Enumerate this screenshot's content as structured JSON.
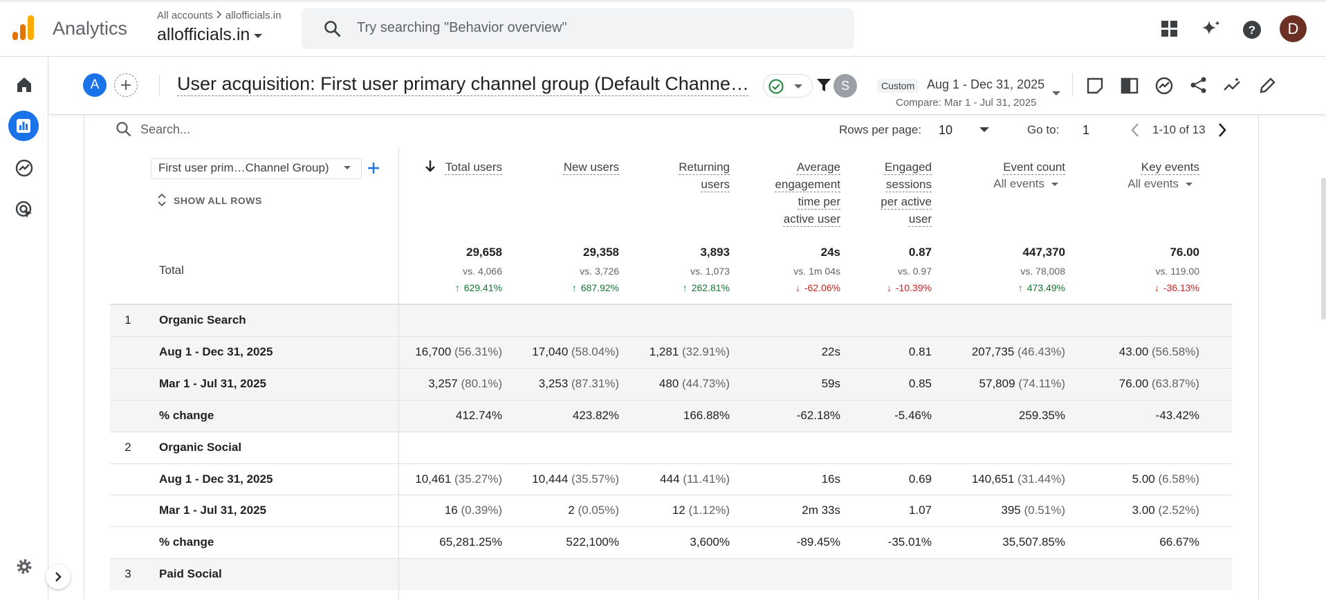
{
  "header": {
    "product": "Analytics",
    "breadcrumb": "All accounts",
    "account_breadcrumb": "allofficials.in",
    "property": "allofficials.in",
    "search_placeholder": "Try searching \"Behavior overview\"",
    "avatar": "D"
  },
  "report": {
    "badge": "A",
    "title": "User acquisition: First user primary channel group (Default Channe…",
    "segment_badge": "S",
    "date_label": "Custom",
    "date_range": "Aug 1 - Dec 31, 2025",
    "compare": "Compare: Mar 1 - Jul 31, 2025"
  },
  "table": {
    "search_placeholder": "Search...",
    "rows_per_page_label": "Rows per page:",
    "rows_per_page": "10",
    "goto_label": "Go to:",
    "goto": "1",
    "pagination": "1-10 of 13",
    "dimension": "First user prim…Channel Group)",
    "show_all": "SHOW ALL ROWS",
    "columns": [
      {
        "label": "Total users"
      },
      {
        "label": "New users"
      },
      {
        "label": "Returning users"
      },
      {
        "label": "Average engagement time per active user"
      },
      {
        "label": "Engaged sessions per active user"
      },
      {
        "label": "Event count",
        "sub": "All events"
      },
      {
        "label": "Key events",
        "sub": "All events"
      }
    ],
    "total": {
      "label": "Total",
      "values": [
        "29,658",
        "29,358",
        "3,893",
        "24s",
        "0.87",
        "447,370",
        "76.00"
      ],
      "compare": [
        "vs. 4,066",
        "vs. 3,726",
        "vs. 1,073",
        "vs. 1m 04s",
        "vs. 0.97",
        "vs. 78,008",
        "vs. 119.00"
      ],
      "change": [
        "629.41%",
        "687.92%",
        "262.81%",
        "-62.06%",
        "-10.39%",
        "473.49%",
        "-36.13%"
      ]
    },
    "groups": [
      {
        "index": "1",
        "name": "Organic Search",
        "rows": [
          {
            "label": "Aug 1 - Dec 31, 2025",
            "cells": [
              [
                "16,700",
                "(56.31%)"
              ],
              [
                "17,040",
                "(58.04%)"
              ],
              [
                "1,281",
                "(32.91%)"
              ],
              [
                "22s"
              ],
              [
                "0.81"
              ],
              [
                "207,735",
                "(46.43%)"
              ],
              [
                "43.00",
                "(56.58%)"
              ]
            ]
          },
          {
            "label": "Mar 1 - Jul 31, 2025",
            "cells": [
              [
                "3,257",
                "(80.1%)"
              ],
              [
                "3,253",
                "(87.31%)"
              ],
              [
                "480",
                "(44.73%)"
              ],
              [
                "59s"
              ],
              [
                "0.85"
              ],
              [
                "57,809",
                "(74.11%)"
              ],
              [
                "76.00",
                "(63.87%)"
              ]
            ]
          },
          {
            "label": "% change",
            "cells": [
              [
                "412.74%"
              ],
              [
                "423.82%"
              ],
              [
                "166.88%"
              ],
              [
                "-62.18%"
              ],
              [
                "-5.46%"
              ],
              [
                "259.35%"
              ],
              [
                "-43.42%"
              ]
            ]
          }
        ]
      },
      {
        "index": "2",
        "name": "Organic Social",
        "rows": [
          {
            "label": "Aug 1 - Dec 31, 2025",
            "cells": [
              [
                "10,461",
                "(35.27%)"
              ],
              [
                "10,444",
                "(35.57%)"
              ],
              [
                "444",
                "(11.41%)"
              ],
              [
                "16s"
              ],
              [
                "0.69"
              ],
              [
                "140,651",
                "(31.44%)"
              ],
              [
                "5.00",
                "(6.58%)"
              ]
            ]
          },
          {
            "label": "Mar 1 - Jul 31, 2025",
            "cells": [
              [
                "16",
                "(0.39%)"
              ],
              [
                "2",
                "(0.05%)"
              ],
              [
                "12",
                "(1.12%)"
              ],
              [
                "2m 33s"
              ],
              [
                "1.07"
              ],
              [
                "395",
                "(0.51%)"
              ],
              [
                "3.00",
                "(2.52%)"
              ]
            ]
          },
          {
            "label": "% change",
            "cells": [
              [
                "65,281.25%"
              ],
              [
                "522,100%"
              ],
              [
                "3,600%"
              ],
              [
                "-89.45%"
              ],
              [
                "-35.01%"
              ],
              [
                "35,507.85%"
              ],
              [
                "66.67%"
              ]
            ]
          }
        ]
      },
      {
        "index": "3",
        "name": "Paid Social",
        "rows": []
      }
    ]
  }
}
